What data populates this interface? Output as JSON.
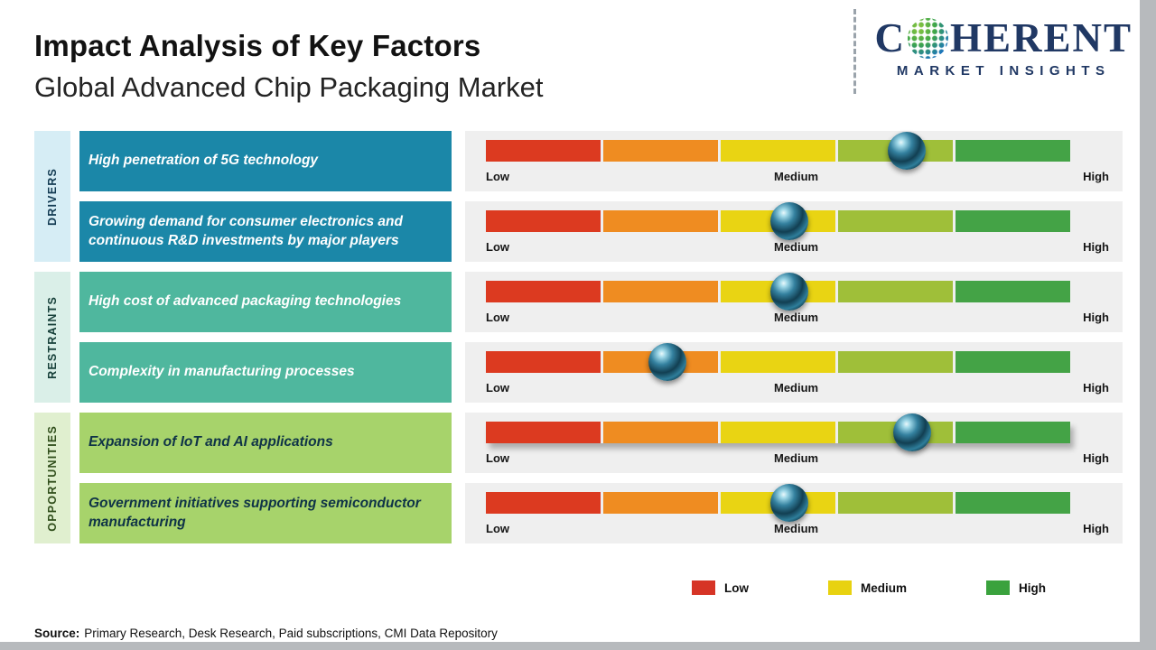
{
  "header": {
    "title": "Impact Analysis of Key Factors",
    "subtitle": "Global Advanced Chip Packaging Market",
    "logo": {
      "brand_prefix": "C",
      "brand_suffix": "HERENT",
      "tagline": "MARKET INSIGHTS",
      "globe_icon": "dotted-globe-o-icon",
      "brand_color": "#203864"
    }
  },
  "sidebar_categories": [
    {
      "label": "DRIVERS",
      "bg_color": "#d6edf5",
      "label_color": "#123a52",
      "box_color": "#1b87a8",
      "box_text_color": "#ffffff"
    },
    {
      "label": "RESTRAINTS",
      "bg_color": "#daefe8",
      "label_color": "#17403a",
      "box_color": "#4fb79e",
      "box_text_color": "#ffffff"
    },
    {
      "label": "OPPORTUNITIES",
      "bg_color": "#e0efcf",
      "label_color": "#2f4d1a",
      "box_color": "#a7d36b",
      "box_text_color": "#0f3347"
    }
  ],
  "chart_data": {
    "type": "impact-bar",
    "title": "Impact Analysis of Key Factors",
    "subtitle": "Global Advanced Chip Packaging Market",
    "scale_labels": {
      "low": "Low",
      "medium": "Medium",
      "high": "High"
    },
    "axis_range_pct": [
      0,
      100
    ],
    "segment_colors": [
      "#dc3a20",
      "#ef8c21",
      "#e9d413",
      "#9fbf39",
      "#44a346"
    ],
    "marker_color": "#123f52",
    "rows": [
      {
        "category": "DRIVERS",
        "category_index": 0,
        "label": "High penetration of 5G technology",
        "impact_pct": 72
      },
      {
        "category": "DRIVERS",
        "category_index": 0,
        "label": "Growing demand for consumer electronics and continuous R&D investments by major players",
        "impact_pct": 52
      },
      {
        "category": "RESTRAINTS",
        "category_index": 1,
        "label": "High cost of advanced packaging technologies",
        "impact_pct": 52
      },
      {
        "category": "RESTRAINTS",
        "category_index": 1,
        "label": "Complexity in manufacturing processes",
        "impact_pct": 31
      },
      {
        "category": "OPPORTUNITIES",
        "category_index": 2,
        "label": "Expansion of IoT and AI applications",
        "impact_pct": 73
      },
      {
        "category": "OPPORTUNITIES",
        "category_index": 2,
        "label": "Government initiatives supporting semiconductor manufacturing",
        "impact_pct": 52
      }
    ]
  },
  "legend": [
    {
      "label": "Low",
      "color": "#d63426"
    },
    {
      "label": "Medium",
      "color": "#e8d210"
    },
    {
      "label": "High",
      "color": "#3aa23d"
    }
  ],
  "source": {
    "prefix": "Source:",
    "text": "Primary Research, Desk Research, Paid subscriptions, CMI Data Repository"
  }
}
